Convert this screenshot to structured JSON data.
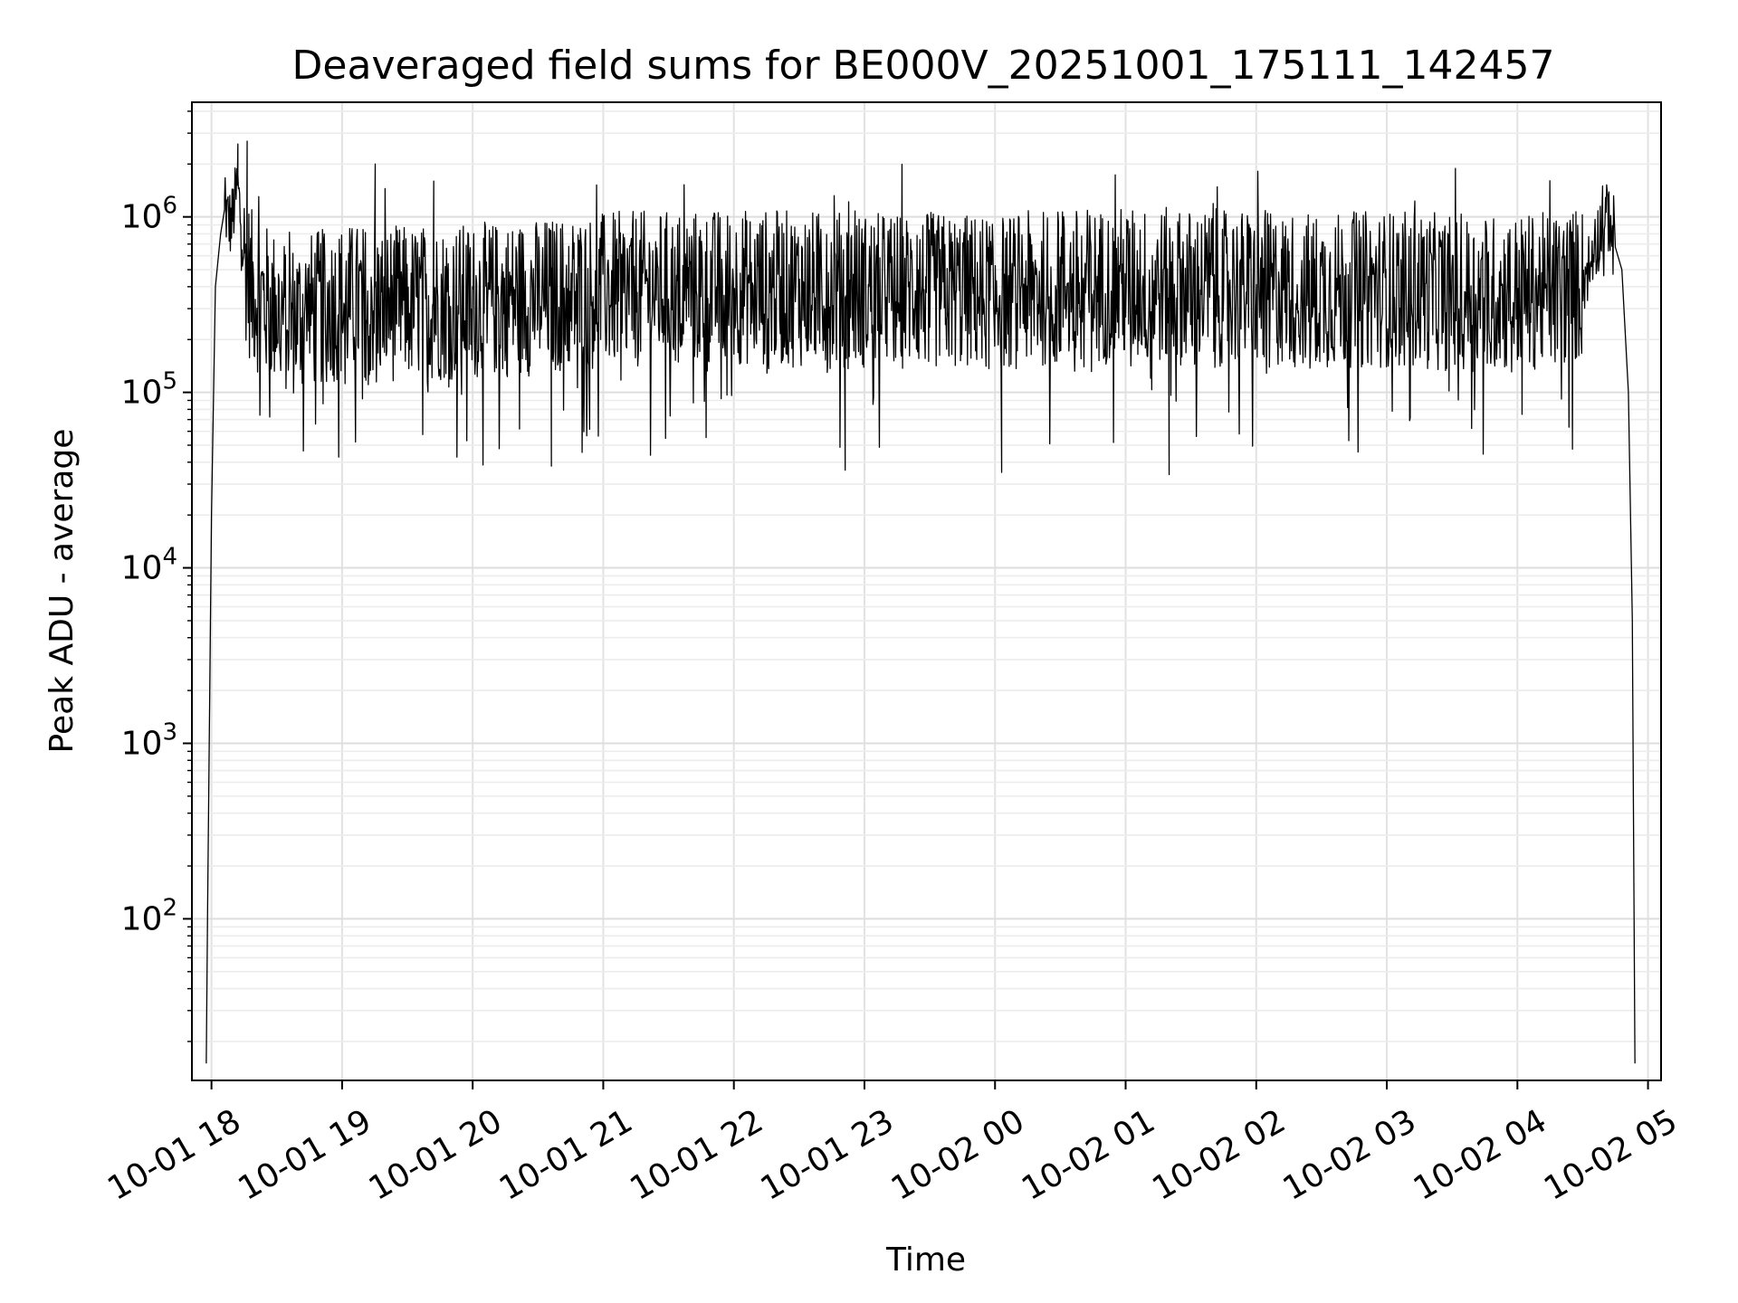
{
  "chart_data": {
    "type": "line",
    "title": "Deaveraged field sums for BE000V_20251001_175111_142457",
    "xlabel": "Time",
    "ylabel": "Peak ADU - average",
    "yscale": "log",
    "ylim": [
      12,
      4500000
    ],
    "xlim": [
      -0.15,
      11.1
    ],
    "x_zero_label": "10-01 18",
    "x_units": "hours after 2025-10-01 18:00",
    "grid": "both",
    "x_ticks": [
      {
        "value": 0,
        "label": "10-01 18"
      },
      {
        "value": 1,
        "label": "10-01 19"
      },
      {
        "value": 2,
        "label": "10-01 20"
      },
      {
        "value": 3,
        "label": "10-01 21"
      },
      {
        "value": 4,
        "label": "10-01 22"
      },
      {
        "value": 5,
        "label": "10-01 23"
      },
      {
        "value": 6,
        "label": "10-02 00"
      },
      {
        "value": 7,
        "label": "10-02 01"
      },
      {
        "value": 8,
        "label": "10-02 02"
      },
      {
        "value": 9,
        "label": "10-02 03"
      },
      {
        "value": 10,
        "label": "10-02 04"
      },
      {
        "value": 11,
        "label": "10-02 05"
      }
    ],
    "y_ticks": [
      {
        "value": 100,
        "base": "10",
        "exp": "2"
      },
      {
        "value": 1000,
        "base": "10",
        "exp": "3"
      },
      {
        "value": 10000,
        "base": "10",
        "exp": "4"
      },
      {
        "value": 100000,
        "base": "10",
        "exp": "5"
      },
      {
        "value": 1000000,
        "base": "10",
        "exp": "6"
      }
    ],
    "series": [
      {
        "name": "field sums",
        "color": "#000000",
        "x": [
          -0.04,
          -0.03,
          0.0,
          0.03,
          0.07,
          0.1,
          0.15,
          0.2,
          0.25,
          0.3,
          0.4,
          0.5,
          0.6,
          0.7,
          0.8,
          0.9,
          1.0,
          1.5,
          2.0,
          2.5,
          3.0,
          3.5,
          4.0,
          4.5,
          5.0,
          5.5,
          6.0,
          6.5,
          7.0,
          7.5,
          8.0,
          8.5,
          9.0,
          9.5,
          10.0,
          10.3,
          10.5,
          10.6,
          10.65,
          10.7,
          10.75,
          10.8,
          10.85,
          10.88,
          10.9
        ],
        "values": [
          15,
          110,
          20000,
          400000,
          800000,
          1100000,
          900000,
          1500000,
          600000,
          400000,
          330000,
          300000,
          260000,
          280000,
          300000,
          310000,
          330000,
          320000,
          330000,
          350000,
          380000,
          390000,
          400000,
          390000,
          380000,
          380000,
          370000,
          400000,
          410000,
          400000,
          390000,
          380000,
          390000,
          370000,
          370000,
          380000,
          420000,
          700000,
          900000,
          1000000,
          800000,
          500000,
          100000,
          5000,
          15
        ],
        "noise_amplitude_dex": 0.45,
        "peak_spikes": [
          {
            "x": 0.2,
            "value": 2600000
          },
          {
            "x": 0.27,
            "value": 2700000
          },
          {
            "x": 1.25,
            "value": 2000000
          },
          {
            "x": 1.7,
            "value": 1600000
          },
          {
            "x": 10.65,
            "value": 1500000
          }
        ],
        "dip_spikes": [
          {
            "x": 2.6,
            "value": 38000
          },
          {
            "x": 4.85,
            "value": 36000
          },
          {
            "x": 6.05,
            "value": 35000
          },
          {
            "x": 7.33,
            "value": 34000
          }
        ]
      }
    ]
  }
}
